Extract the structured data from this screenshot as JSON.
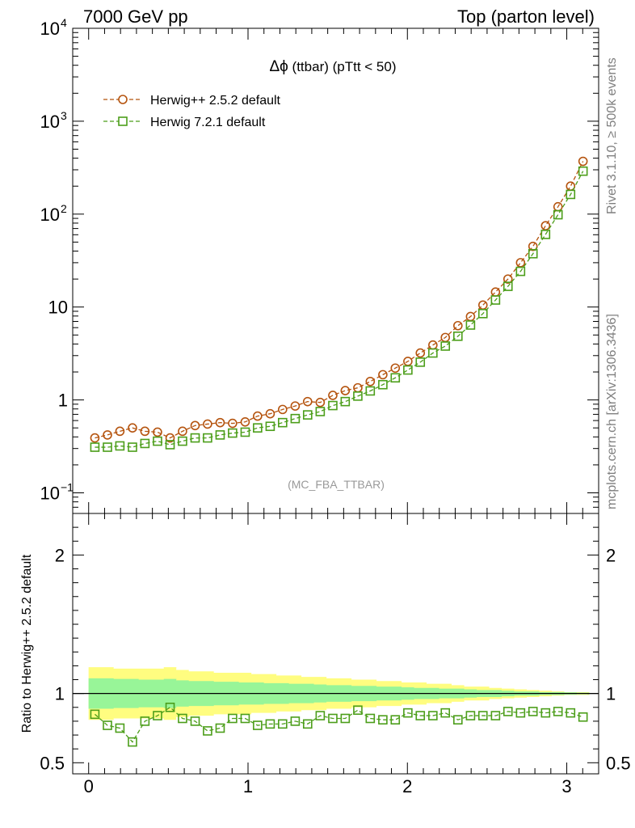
{
  "header": {
    "left": "7000 GeV pp",
    "right": "Top (parton level)"
  },
  "side_labels": {
    "rivet": "Rivet 3.1.10, ≥ 500k events",
    "mcplots": "mcplots.cern.ch [arXiv:1306.3436]"
  },
  "chart_data": [
    {
      "type": "line",
      "title_symbol": "Δϕ",
      "title_rest": " (ttbar) (pTtt < 50)",
      "watermark": "(MC_FBA_TTBAR)",
      "xlim": [
        -0.1,
        3.2
      ],
      "ylim": [
        0.06,
        10000
      ],
      "yscale": "log",
      "legend_position": "top-left",
      "x": [
        0.039,
        0.118,
        0.196,
        0.275,
        0.353,
        0.432,
        0.511,
        0.589,
        0.668,
        0.746,
        0.825,
        0.903,
        0.982,
        1.06,
        1.139,
        1.217,
        1.296,
        1.374,
        1.453,
        1.532,
        1.61,
        1.689,
        1.767,
        1.846,
        1.924,
        2.003,
        2.081,
        2.16,
        2.238,
        2.317,
        2.396,
        2.474,
        2.553,
        2.631,
        2.71,
        2.788,
        2.867,
        2.945,
        3.024,
        3.102
      ],
      "series": [
        {
          "name": "Herwig++ 2.5.2 default",
          "marker": "circle",
          "color": "#b5540f",
          "values": [
            0.39,
            0.42,
            0.46,
            0.5,
            0.46,
            0.45,
            0.39,
            0.46,
            0.53,
            0.55,
            0.57,
            0.56,
            0.58,
            0.67,
            0.71,
            0.79,
            0.86,
            0.96,
            0.94,
            1.12,
            1.26,
            1.35,
            1.58,
            1.87,
            2.2,
            2.6,
            3.2,
            3.9,
            4.7,
            6.3,
            7.9,
            10.5,
            14.5,
            20,
            30,
            45,
            75,
            120,
            200,
            370
          ]
        },
        {
          "name": "Herwig 7.2.1 default",
          "marker": "square",
          "color": "#4c9e1a",
          "values": [
            0.31,
            0.31,
            0.32,
            0.31,
            0.34,
            0.36,
            0.33,
            0.36,
            0.39,
            0.39,
            0.42,
            0.44,
            0.45,
            0.5,
            0.52,
            0.57,
            0.63,
            0.69,
            0.75,
            0.87,
            0.96,
            1.1,
            1.25,
            1.46,
            1.73,
            2.1,
            2.55,
            3.2,
            3.8,
            4.85,
            6.4,
            8.5,
            11.9,
            16.7,
            24.2,
            37.5,
            60.5,
            98.5,
            163,
            290
          ]
        }
      ]
    },
    {
      "type": "line",
      "ylabel": "Ratio to Herwig++ 2.5.2 default",
      "xlim": [
        -0.1,
        3.2
      ],
      "ylim": [
        0.42,
        2.3
      ],
      "reference_line": 1,
      "x_ticks": [
        0,
        1,
        2,
        3
      ],
      "y_ticks": [
        0.5,
        1,
        2
      ],
      "band_colors": {
        "outer": "#fffd80",
        "inner": "#98f598"
      },
      "x": [
        0.039,
        0.118,
        0.196,
        0.275,
        0.353,
        0.432,
        0.511,
        0.589,
        0.668,
        0.746,
        0.825,
        0.903,
        0.982,
        1.06,
        1.139,
        1.217,
        1.296,
        1.374,
        1.453,
        1.532,
        1.61,
        1.689,
        1.767,
        1.846,
        1.924,
        2.003,
        2.081,
        2.16,
        2.238,
        2.317,
        2.396,
        2.474,
        2.553,
        2.631,
        2.71,
        2.788,
        2.867,
        2.945,
        3.024,
        3.102
      ],
      "band_outer": [
        0.19,
        0.19,
        0.18,
        0.18,
        0.18,
        0.18,
        0.19,
        0.17,
        0.16,
        0.16,
        0.15,
        0.15,
        0.15,
        0.14,
        0.14,
        0.13,
        0.13,
        0.12,
        0.12,
        0.11,
        0.11,
        0.1,
        0.1,
        0.09,
        0.09,
        0.08,
        0.08,
        0.07,
        0.07,
        0.06,
        0.05,
        0.05,
        0.04,
        0.035,
        0.03,
        0.025,
        0.02,
        0.015,
        0.01,
        0.01
      ],
      "band_inner": [
        0.11,
        0.11,
        0.105,
        0.105,
        0.1,
        0.1,
        0.105,
        0.095,
        0.09,
        0.09,
        0.085,
        0.085,
        0.08,
        0.08,
        0.075,
        0.075,
        0.07,
        0.07,
        0.065,
        0.06,
        0.06,
        0.055,
        0.055,
        0.05,
        0.05,
        0.045,
        0.04,
        0.04,
        0.035,
        0.035,
        0.03,
        0.025,
        0.025,
        0.02,
        0.015,
        0.015,
        0.01,
        0.01,
        0.008,
        0.006
      ],
      "series": [
        {
          "name": "Herwig 7.2.1 default",
          "marker": "square",
          "color": "#4c9e1a",
          "values": [
            0.85,
            0.77,
            0.75,
            0.65,
            0.8,
            0.84,
            0.9,
            0.82,
            0.8,
            0.73,
            0.75,
            0.82,
            0.82,
            0.77,
            0.78,
            0.78,
            0.8,
            0.78,
            0.84,
            0.82,
            0.82,
            0.88,
            0.82,
            0.81,
            0.81,
            0.86,
            0.84,
            0.84,
            0.86,
            0.81,
            0.84,
            0.84,
            0.84,
            0.87,
            0.86,
            0.87,
            0.86,
            0.87,
            0.86,
            0.83
          ]
        }
      ]
    }
  ]
}
